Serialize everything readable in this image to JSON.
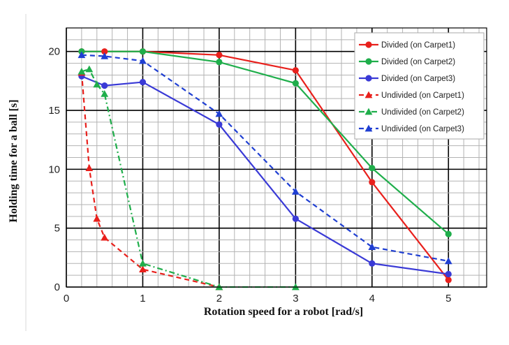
{
  "chart_data": {
    "type": "line",
    "xlabel": "Rotation speed for a robot [rad/s]",
    "ylabel": "Holding time for a ball [s]",
    "xlim": [
      0,
      5.5
    ],
    "ylim": [
      0,
      22
    ],
    "xticks": [
      "0",
      "1",
      "2",
      "3",
      "4",
      "5"
    ],
    "yticks": [
      "0",
      "5",
      "10",
      "15",
      "20"
    ],
    "grid": "major and minor",
    "legend_position": "top-right",
    "series": [
      {
        "name": "Divided (on Carpet1)",
        "color": "#e8201c",
        "marker": "circle",
        "dash": "solid",
        "x": [
          0.2,
          0.5,
          1,
          2,
          3,
          4,
          5
        ],
        "y": [
          20,
          20,
          20,
          19.7,
          18.4,
          8.9,
          0.6
        ]
      },
      {
        "name": "Divided (on Carpet2)",
        "color": "#1fae4b",
        "marker": "circle",
        "dash": "solid",
        "x": [
          0.2,
          1,
          2,
          3,
          4,
          5
        ],
        "y": [
          20,
          20,
          19.1,
          17.3,
          10.1,
          4.5
        ]
      },
      {
        "name": "Divided (on Carpet3)",
        "color": "#3a3ad6",
        "marker": "circle",
        "dash": "solid",
        "x": [
          0.2,
          0.5,
          1,
          2,
          3,
          4,
          5
        ],
        "y": [
          17.9,
          17.1,
          17.4,
          13.8,
          5.8,
          2.0,
          1.1
        ]
      },
      {
        "name": "Undivided (on Carpet1)",
        "color": "#e8201c",
        "marker": "triangle",
        "dash": "dashed",
        "x": [
          0.2,
          0.3,
          0.4,
          0.5,
          1,
          2
        ],
        "y": [
          18.2,
          10.1,
          5.8,
          4.2,
          1.5,
          0
        ]
      },
      {
        "name": "Undivided (on Carpet2)",
        "color": "#1fae4b",
        "marker": "triangle",
        "dash": "dashdot",
        "x": [
          0.2,
          0.3,
          0.4,
          0.5,
          1,
          2,
          3
        ],
        "y": [
          18.3,
          18.5,
          17.2,
          16.4,
          2.0,
          0,
          0
        ]
      },
      {
        "name": "Undivided (on Carpet3)",
        "color": "#1f3fd2",
        "marker": "triangle",
        "dash": "dashed",
        "x": [
          0.2,
          0.5,
          1,
          2,
          3,
          4,
          5
        ],
        "y": [
          19.7,
          19.6,
          19.2,
          14.7,
          8.1,
          3.4,
          2.2
        ]
      }
    ]
  }
}
